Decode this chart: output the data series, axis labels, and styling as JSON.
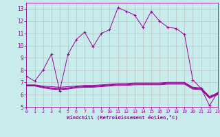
{
  "title": "",
  "xlabel": "Windchill (Refroidissement éolien,°C)",
  "background_color": "#c8ecec",
  "line_color": "#990099",
  "grid_color": "#bbbbbb",
  "x": [
    0,
    1,
    2,
    3,
    4,
    5,
    6,
    7,
    8,
    9,
    10,
    11,
    12,
    13,
    14,
    15,
    16,
    17,
    18,
    19,
    20,
    21,
    22,
    23
  ],
  "y_main": [
    7.5,
    7.1,
    8.0,
    9.3,
    6.3,
    9.3,
    10.5,
    11.1,
    9.9,
    11.0,
    11.3,
    13.1,
    12.8,
    12.5,
    11.5,
    12.8,
    12.0,
    11.5,
    11.4,
    10.9,
    7.2,
    6.5,
    5.1,
    6.2
  ],
  "y_flat1": [
    6.8,
    6.8,
    6.7,
    6.65,
    6.6,
    6.65,
    6.7,
    6.75,
    6.75,
    6.8,
    6.85,
    6.9,
    6.9,
    6.95,
    6.95,
    6.95,
    6.95,
    7.0,
    7.0,
    7.0,
    6.6,
    6.55,
    5.85,
    6.15
  ],
  "y_flat2": [
    6.75,
    6.75,
    6.65,
    6.55,
    6.5,
    6.55,
    6.65,
    6.7,
    6.7,
    6.75,
    6.8,
    6.85,
    6.85,
    6.9,
    6.9,
    6.9,
    6.9,
    6.95,
    6.95,
    6.95,
    6.55,
    6.5,
    5.8,
    6.1
  ],
  "y_flat3": [
    6.75,
    6.75,
    6.6,
    6.5,
    6.45,
    6.5,
    6.6,
    6.65,
    6.65,
    6.7,
    6.75,
    6.8,
    6.8,
    6.85,
    6.85,
    6.85,
    6.85,
    6.9,
    6.9,
    6.9,
    6.5,
    6.45,
    5.75,
    6.05
  ],
  "y_flat4": [
    6.7,
    6.7,
    6.55,
    6.45,
    6.4,
    6.45,
    6.55,
    6.6,
    6.6,
    6.65,
    6.7,
    6.75,
    6.75,
    6.8,
    6.8,
    6.8,
    6.8,
    6.85,
    6.85,
    6.85,
    6.45,
    6.4,
    5.7,
    6.0
  ],
  "xlim": [
    0,
    23
  ],
  "ylim": [
    5,
    13.5
  ],
  "yticks": [
    5,
    6,
    7,
    8,
    9,
    10,
    11,
    12,
    13
  ],
  "xticks": [
    0,
    1,
    2,
    3,
    4,
    5,
    6,
    7,
    8,
    9,
    10,
    11,
    12,
    13,
    14,
    15,
    16,
    17,
    18,
    19,
    20,
    21,
    22,
    23
  ]
}
